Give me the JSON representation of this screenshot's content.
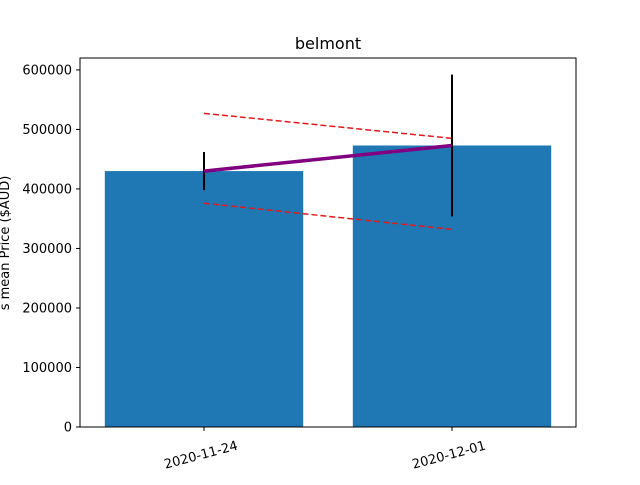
{
  "chart_data": {
    "type": "bar",
    "title": "belmont",
    "xlabel": "",
    "ylabel": "s mean Price ($AUD)",
    "categories": [
      "2020-11-24",
      "2020-12-01"
    ],
    "values": [
      430000,
      473000
    ],
    "ylim": [
      0,
      620000
    ],
    "yticks": [
      0,
      100000,
      200000,
      300000,
      400000,
      500000,
      600000
    ],
    "ytick_labels": [
      "0",
      "100000",
      "200000",
      "300000",
      "400000",
      "500000",
      "600000"
    ],
    "error_bars": [
      {
        "low": 398000,
        "high": 462000
      },
      {
        "low": 354000,
        "high": 592000
      }
    ],
    "mean_line": [
      430000,
      473000
    ],
    "upper_band": [
      527000,
      485000
    ],
    "lower_band": [
      376000,
      332000
    ],
    "grid": false,
    "colors": {
      "bar": "#1f77b4",
      "error_bar": "#000000",
      "mean_line": "#800080",
      "band": "#e31a1c",
      "axis": "#000000"
    }
  }
}
